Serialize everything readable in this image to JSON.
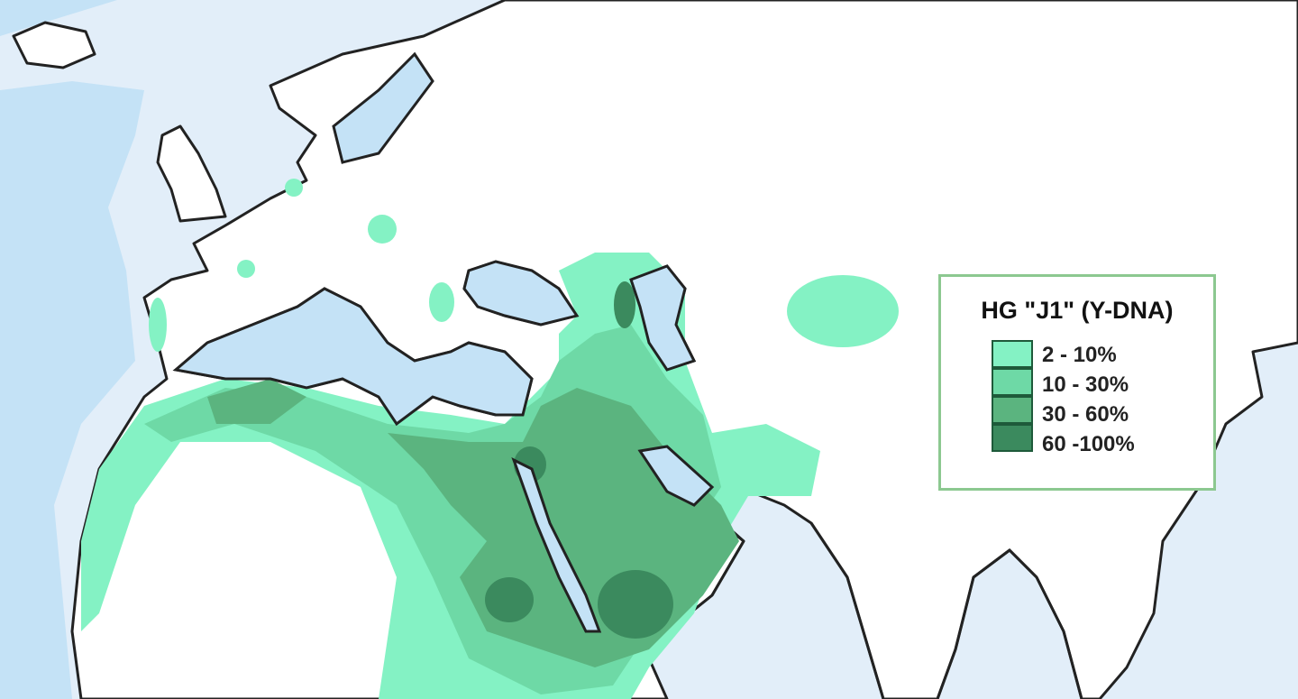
{
  "legend": {
    "title": "HG \"J1\" (Y-DNA)",
    "items": [
      {
        "label": "2  - 10%",
        "color": "#84f2c4"
      },
      {
        "label": "10 - 30%",
        "color": "#6ed9a6"
      },
      {
        "label": "30 - 60%",
        "color": "#5bb47f"
      },
      {
        "label": "60 -100%",
        "color": "#3b8a5e"
      }
    ]
  },
  "colors": {
    "ocean": "#c4e2f6",
    "shelf": "#e2eef9",
    "land": "#ffffff",
    "legend_border": "#8cc890"
  }
}
